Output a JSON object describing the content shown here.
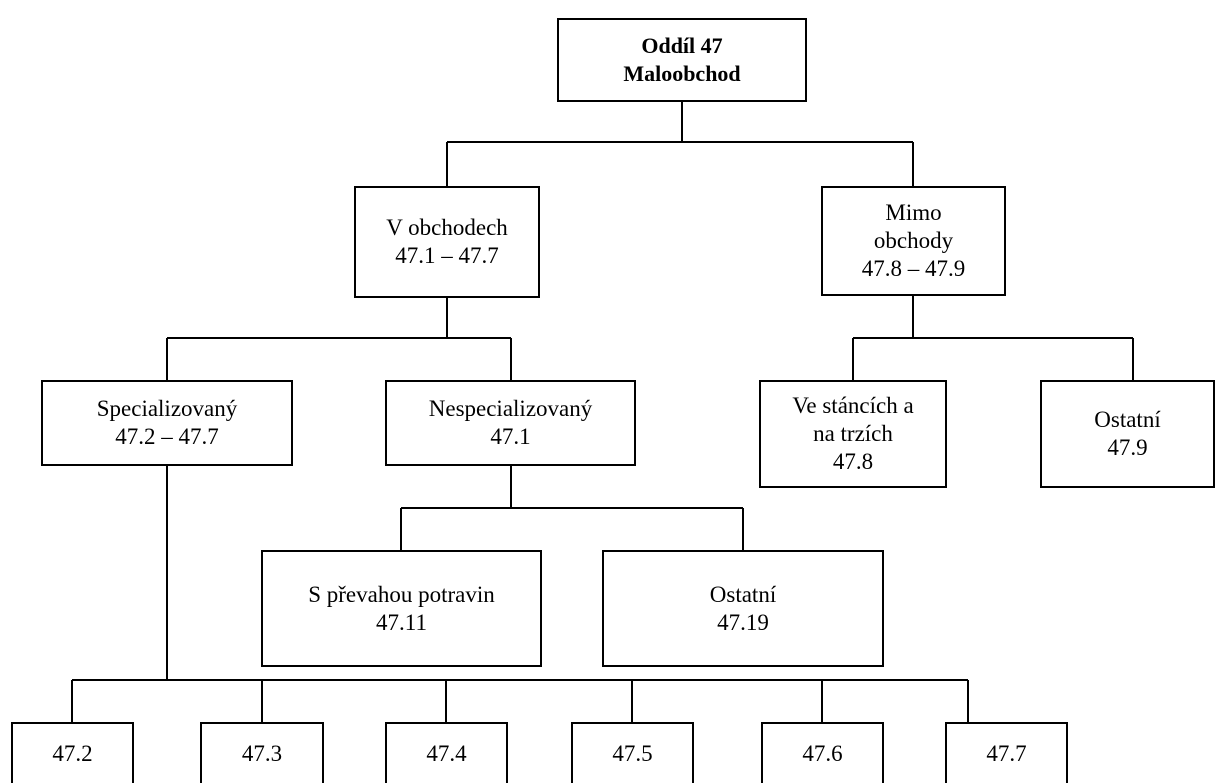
{
  "diagram": {
    "root": {
      "line1": "Oddíl 47",
      "line2": "Maloobchod"
    },
    "in_shops": {
      "line1": "V obchodech",
      "line2": "47.1 – 47.7"
    },
    "outside_shops": {
      "line1": "Mimo",
      "line2": "obchody",
      "line3": "47.8 – 47.9"
    },
    "specialized": {
      "line1": "Specializovaný",
      "line2": "47.2 – 47.7"
    },
    "non_specialized": {
      "line1": "Nespecializovaný",
      "line2": "47.1"
    },
    "stalls_markets": {
      "line1": "Ve stáncích a",
      "line2": "na trzích",
      "line3": "47.8"
    },
    "other_outside": {
      "line1": "Ostatní",
      "line2": "47.9"
    },
    "food_predominant": {
      "line1": "S převahou potravin",
      "line2": "47.11"
    },
    "other_non_specialized": {
      "line1": "Ostatní",
      "line2": "47.19"
    },
    "codes": [
      "47.2",
      "47.3",
      "47.4",
      "47.5",
      "47.6",
      "47.7"
    ],
    "colors": {
      "line": "#000000",
      "box_border": "#000000",
      "background": "#ffffff"
    }
  }
}
